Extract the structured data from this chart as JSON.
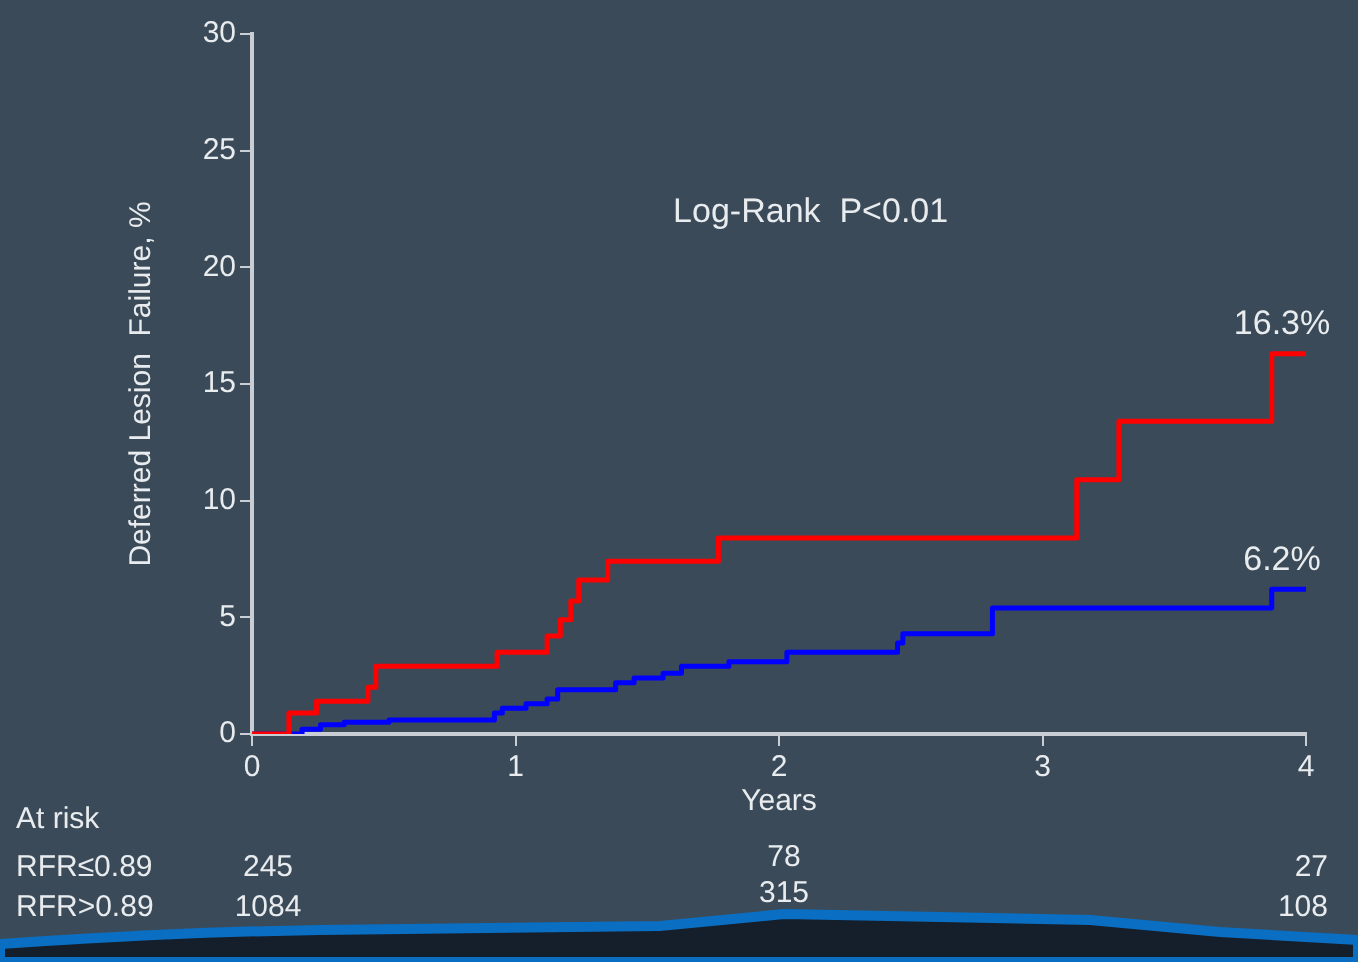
{
  "chart_data": {
    "type": "step",
    "ylabel": "Deferred Lesion  Failure, %",
    "xlabel": "Years",
    "xlim": [
      0,
      4
    ],
    "xticks": [
      0,
      1,
      2,
      3,
      4
    ],
    "ylim": [
      0,
      30
    ],
    "yticks": [
      0,
      5,
      10,
      15,
      20,
      25,
      30
    ],
    "grid": false,
    "legend": false,
    "marker": "none",
    "line_style": "solid",
    "series": [
      {
        "color": "#ff0000",
        "x": [
          0,
          0.14,
          0.245,
          0.44,
          0.47,
          0.93,
          1.12,
          1.17,
          1.21,
          1.24,
          1.35,
          1.77,
          3.13,
          3.29,
          3.87,
          4.0
        ],
        "values": [
          0,
          0.9,
          1.4,
          2.0,
          2.9,
          3.5,
          4.2,
          4.9,
          5.7,
          6.6,
          7.4,
          8.4,
          10.9,
          13.4,
          16.3,
          16.3
        ]
      },
      {
        "color": "#0000ff",
        "x": [
          0,
          0.19,
          0.26,
          0.35,
          0.52,
          0.92,
          0.95,
          1.04,
          1.12,
          1.16,
          1.38,
          1.45,
          1.56,
          1.63,
          1.81,
          2.03,
          2.45,
          2.47,
          2.81,
          3.87,
          4.0
        ],
        "values": [
          0,
          0.2,
          0.4,
          0.5,
          0.6,
          0.9,
          1.1,
          1.3,
          1.5,
          1.9,
          2.2,
          2.4,
          2.6,
          2.9,
          3.1,
          3.5,
          3.9,
          4.3,
          5.4,
          6.2,
          6.2
        ]
      }
    ],
    "annotations": [
      "Log-Rank  P<0.01",
      "16.3%",
      "6.2%",
      "At risk",
      "RFR≤0.89",
      "245",
      "78",
      "27",
      "RFR>0.89",
      "1084",
      "315",
      "108"
    ]
  }
}
